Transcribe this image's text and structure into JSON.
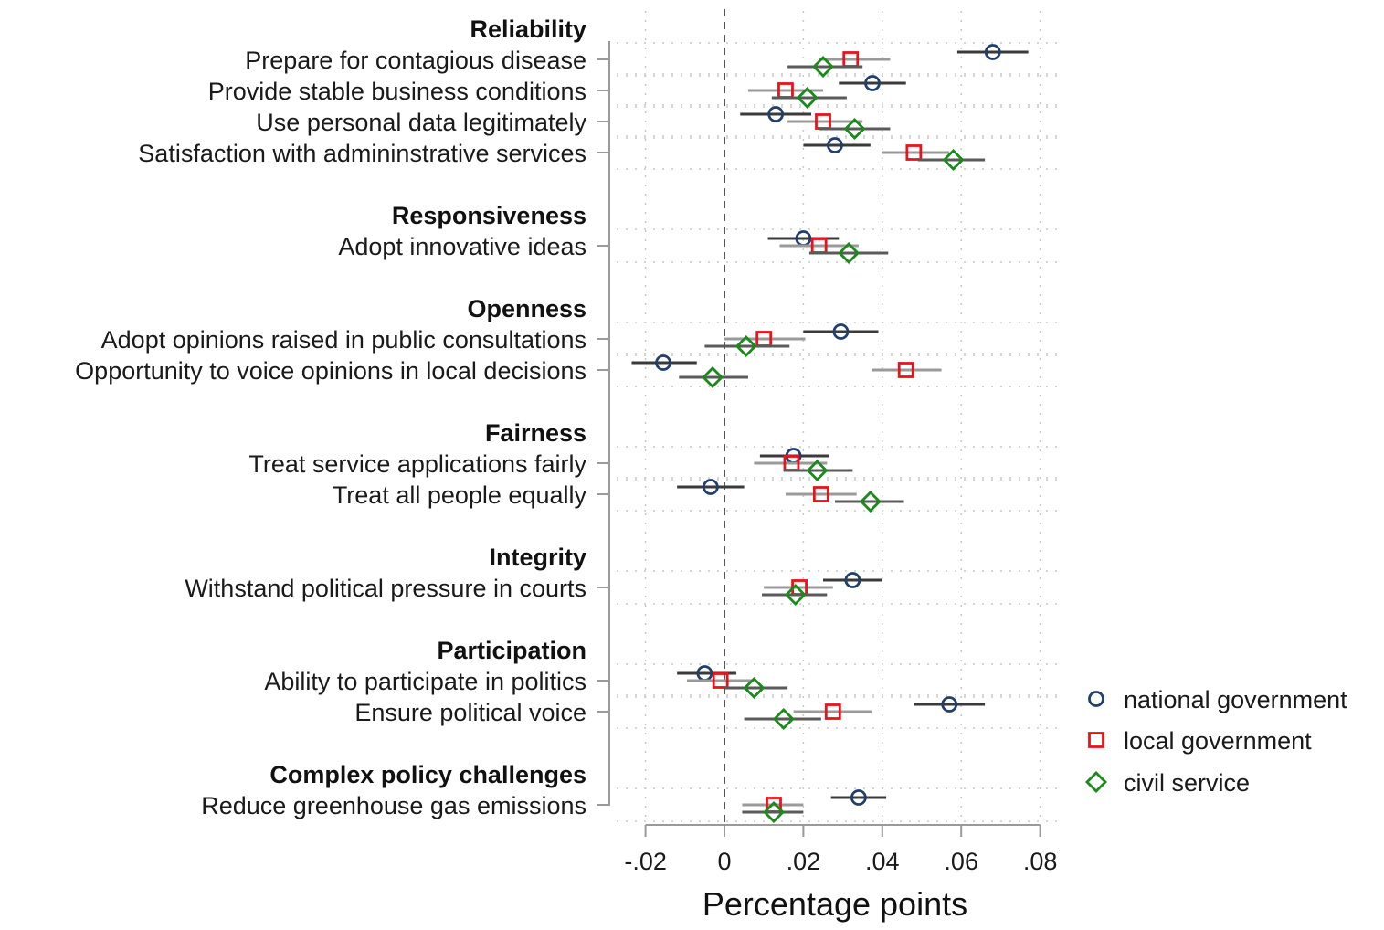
{
  "chart_data": {
    "type": "scatter",
    "subtype": "coefficient-plot-with-confidence-intervals",
    "title": "",
    "xlabel": "Percentage points",
    "ylabel": "",
    "xlim": [
      -0.02,
      0.08
    ],
    "xticks": [
      -0.02,
      0,
      0.02,
      0.04,
      0.06,
      0.08
    ],
    "xtick_labels": [
      "-.02",
      "0",
      ".02",
      ".04",
      ".06",
      ".08"
    ],
    "reference_line": {
      "x": 0,
      "style": "dashed"
    },
    "grid": true,
    "legend_position": "bottom-right",
    "series": [
      {
        "key": "national",
        "name": "national government",
        "marker": "circle",
        "color": "#1f3f6e"
      },
      {
        "key": "local",
        "name": "local government",
        "marker": "square",
        "color": "#e8141b"
      },
      {
        "key": "civil",
        "name": "civil service",
        "marker": "diamond",
        "color": "#1a8a1a"
      }
    ],
    "groups": [
      {
        "header": "Reliability",
        "items": [
          {
            "label": "Prepare for contagious disease",
            "national": {
              "est": 0.068,
              "ci": [
                0.059,
                0.077
              ]
            },
            "local": {
              "est": 0.032,
              "ci": [
                0.024,
                0.042
              ]
            },
            "civil": {
              "est": 0.025,
              "ci": [
                0.016,
                0.035
              ]
            }
          },
          {
            "label": "Provide stable business conditions",
            "national": {
              "est": 0.0375,
              "ci": [
                0.029,
                0.046
              ]
            },
            "local": {
              "est": 0.0155,
              "ci": [
                0.006,
                0.025
              ]
            },
            "civil": {
              "est": 0.021,
              "ci": [
                0.012,
                0.031
              ]
            }
          },
          {
            "label": "Use personal data legitimately",
            "national": {
              "est": 0.013,
              "ci": [
                0.004,
                0.022
              ]
            },
            "local": {
              "est": 0.025,
              "ci": [
                0.016,
                0.035
              ]
            },
            "civil": {
              "est": 0.033,
              "ci": [
                0.024,
                0.042
              ]
            }
          },
          {
            "label": "Satisfaction with admininstrative services",
            "national": {
              "est": 0.028,
              "ci": [
                0.02,
                0.037
              ]
            },
            "local": {
              "est": 0.048,
              "ci": [
                0.04,
                0.057
              ]
            },
            "civil": {
              "est": 0.058,
              "ci": [
                0.049,
                0.066
              ]
            }
          }
        ]
      },
      {
        "header": "Responsiveness",
        "items": [
          {
            "label": "Adopt innovative ideas",
            "national": {
              "est": 0.02,
              "ci": [
                0.011,
                0.029
              ]
            },
            "local": {
              "est": 0.024,
              "ci": [
                0.014,
                0.034
              ]
            },
            "civil": {
              "est": 0.0315,
              "ci": [
                0.0215,
                0.0415
              ]
            }
          }
        ]
      },
      {
        "header": "Openness",
        "items": [
          {
            "label": "Adopt opinions raised in public consultations",
            "national": {
              "est": 0.0295,
              "ci": [
                0.02,
                0.039
              ]
            },
            "local": {
              "est": 0.01,
              "ci": [
                0.0,
                0.0205
              ]
            },
            "civil": {
              "est": 0.0055,
              "ci": [
                -0.005,
                0.0165
              ]
            }
          },
          {
            "label": "Opportunity to voice opinions in local decisions",
            "national": {
              "est": -0.0155,
              "ci": [
                -0.0235,
                -0.007
              ]
            },
            "local": {
              "est": 0.046,
              "ci": [
                0.0375,
                0.055
              ]
            },
            "civil": {
              "est": -0.003,
              "ci": [
                -0.0115,
                0.006
              ]
            }
          }
        ]
      },
      {
        "header": "Fairness",
        "items": [
          {
            "label": "Treat service applications fairly",
            "national": {
              "est": 0.0175,
              "ci": [
                0.009,
                0.0265
              ]
            },
            "local": {
              "est": 0.017,
              "ci": [
                0.0075,
                0.026
              ]
            },
            "civil": {
              "est": 0.0235,
              "ci": [
                0.015,
                0.0325
              ]
            }
          },
          {
            "label": "Treat all people equally",
            "national": {
              "est": -0.0035,
              "ci": [
                -0.012,
                0.005
              ]
            },
            "local": {
              "est": 0.0245,
              "ci": [
                0.0155,
                0.0335
              ]
            },
            "civil": {
              "est": 0.037,
              "ci": [
                0.028,
                0.0455
              ]
            }
          }
        ]
      },
      {
        "header": "Integrity",
        "items": [
          {
            "label": "Withstand political pressure in courts",
            "national": {
              "est": 0.0325,
              "ci": [
                0.025,
                0.04
              ]
            },
            "local": {
              "est": 0.019,
              "ci": [
                0.01,
                0.0275
              ]
            },
            "civil": {
              "est": 0.018,
              "ci": [
                0.0095,
                0.026
              ]
            }
          }
        ]
      },
      {
        "header": "Participation",
        "items": [
          {
            "label": "Ability to participate in politics",
            "national": {
              "est": -0.005,
              "ci": [
                -0.012,
                0.003
              ]
            },
            "local": {
              "est": -0.001,
              "ci": [
                -0.0095,
                0.0075
              ]
            },
            "civil": {
              "est": 0.0075,
              "ci": [
                0.0,
                0.016
              ]
            }
          },
          {
            "label": "Ensure political voice",
            "national": {
              "est": 0.057,
              "ci": [
                0.048,
                0.066
              ]
            },
            "local": {
              "est": 0.0275,
              "ci": [
                0.0175,
                0.0375
              ]
            },
            "civil": {
              "est": 0.015,
              "ci": [
                0.005,
                0.0245
              ]
            }
          }
        ]
      },
      {
        "header": "Complex policy challenges",
        "items": [
          {
            "label": "Reduce greenhouse gas emissions",
            "national": {
              "est": 0.034,
              "ci": [
                0.027,
                0.041
              ]
            },
            "local": {
              "est": 0.0125,
              "ci": [
                0.0045,
                0.02
              ]
            },
            "civil": {
              "est": 0.0125,
              "ci": [
                0.0045,
                0.02
              ]
            }
          }
        ]
      }
    ]
  }
}
